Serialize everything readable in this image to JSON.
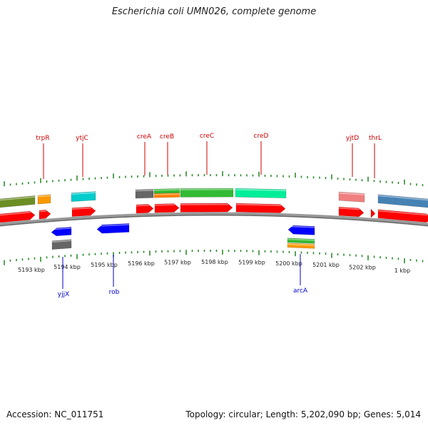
{
  "title": "Escherichia coli UMN026, complete genome",
  "accession": "Accession: NC_011751",
  "summary": "Topology: circular; Length: 5,202,090 bp; Genes: 5,014",
  "colors": {
    "cds": "#ff0000",
    "gene_label_forward": "#cc0000",
    "gene_label_reverse": "#0000cc",
    "reverse_cds": "#0000ff",
    "tick": "#2e8b2e",
    "backbone": "#888888"
  },
  "kbp_labels": [
    "5193 kbp",
    "5194 kbp",
    "5195 kbp",
    "5196 kbp",
    "5197 kbp",
    "5198 kbp",
    "5199 kbp",
    "5200 kbp",
    "5201 kbp",
    "5202 kbp",
    "1 kbp"
  ],
  "forward_genes": [
    "trpR",
    "ytjC",
    "creA",
    "creB",
    "creC",
    "creD",
    "yjtD",
    "thrL"
  ],
  "reverse_genes": [
    "yjjX",
    "rob",
    "arcA"
  ],
  "feature_colors": [
    "#6b8e23",
    "#ff9900",
    "#00cccc",
    "#666666",
    "#ff8000",
    "#33bb33",
    "#00ee99",
    "#f08080",
    "#4682b4"
  ]
}
